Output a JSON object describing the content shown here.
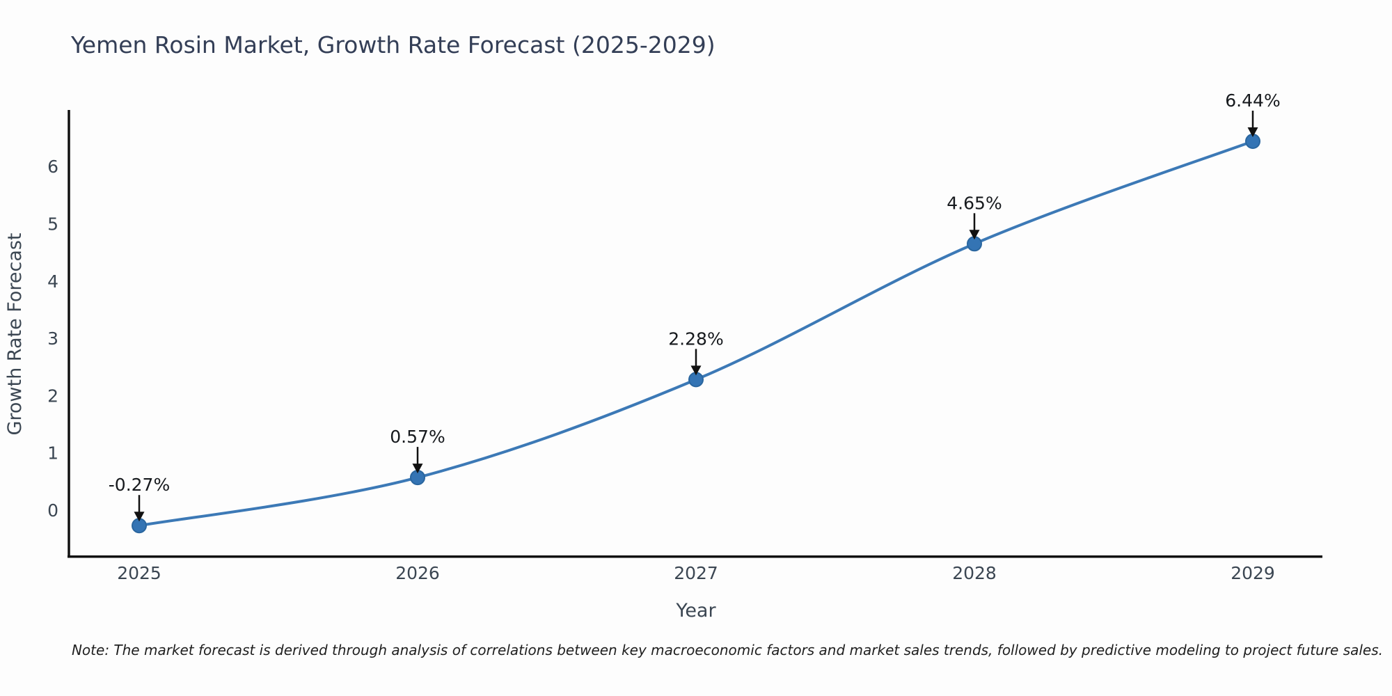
{
  "title": "Yemen Rosin Market, Growth Rate Forecast (2025-2029)",
  "note": "Note: The market forecast is derived through analysis of correlations between key macroeconomic factors and market sales trends, followed by predictive modeling to project future sales.",
  "chart_data": {
    "type": "line",
    "line_shape": "spline",
    "x": [
      2025,
      2026,
      2027,
      2028,
      2029
    ],
    "categories": [
      "2025",
      "2026",
      "2027",
      "2028",
      "2029"
    ],
    "series": [
      {
        "name": "Growth Rate Forecast",
        "values": [
          -0.27,
          0.57,
          2.28,
          4.65,
          6.44
        ]
      }
    ],
    "point_labels": [
      "-0.27%",
      "0.57%",
      "2.28%",
      "4.65%",
      "6.44%"
    ],
    "title": "Yemen Rosin Market, Growth Rate Forecast (2025-2029)",
    "xlabel": "Year",
    "ylabel": "Growth Rate Forecast",
    "yticks": [
      0,
      1,
      2,
      3,
      4,
      5,
      6
    ],
    "ylim": [
      -0.83,
      6.97
    ],
    "grid": false,
    "legend": "none",
    "annotations_have_arrows": true
  },
  "colors": {
    "line": "#3c79b6",
    "marker_fill": "#3474b4",
    "marker_edge": "#2a669f",
    "axis": "#111111",
    "title_text": "#333e56",
    "tick_text": "#3b4652",
    "annotation_text": "#16191d",
    "arrow": "#111111",
    "note_text": "#1f1f1f",
    "background": "#fdfdfd"
  }
}
